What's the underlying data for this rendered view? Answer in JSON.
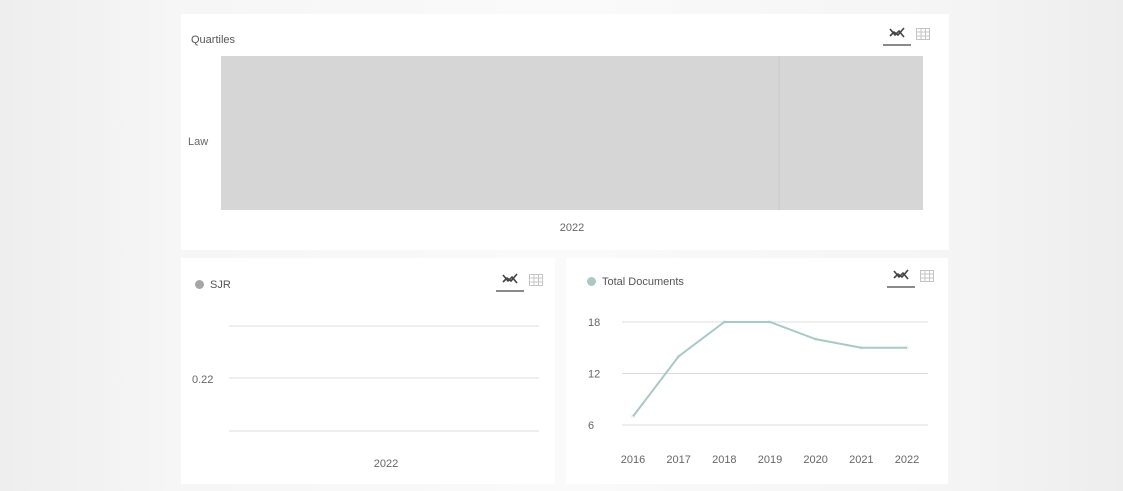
{
  "colors": {
    "quartile_fill": "#d6d6d6",
    "sjr_dot": "#a6a6a6",
    "total_docs_line": "#a9c9c4",
    "grid": "#dcdcdc"
  },
  "icons": {
    "chart_toggle": "line-chart-icon",
    "table_toggle": "table-icon"
  },
  "chart_data": [
    {
      "type": "heatmap",
      "title": "Quartiles",
      "categories": [
        "Law"
      ],
      "x": [
        "2022"
      ],
      "values": [
        [
          null
        ]
      ],
      "legend": "none"
    },
    {
      "type": "line",
      "title": "SJR",
      "x": [
        "2022"
      ],
      "series": [
        {
          "name": "SJR",
          "values": [
            null
          ]
        }
      ],
      "y_ticks": [
        "0.22"
      ],
      "grid": true
    },
    {
      "type": "line",
      "title": "Total Documents",
      "x": [
        "2016",
        "2017",
        "2018",
        "2019",
        "2020",
        "2021",
        "2022"
      ],
      "series": [
        {
          "name": "Total Documents",
          "values": [
            7,
            14,
            18,
            18,
            16,
            15,
            15
          ]
        }
      ],
      "y_ticks": [
        "6",
        "12",
        "18"
      ],
      "ylim": [
        6,
        18
      ],
      "grid": true
    }
  ]
}
